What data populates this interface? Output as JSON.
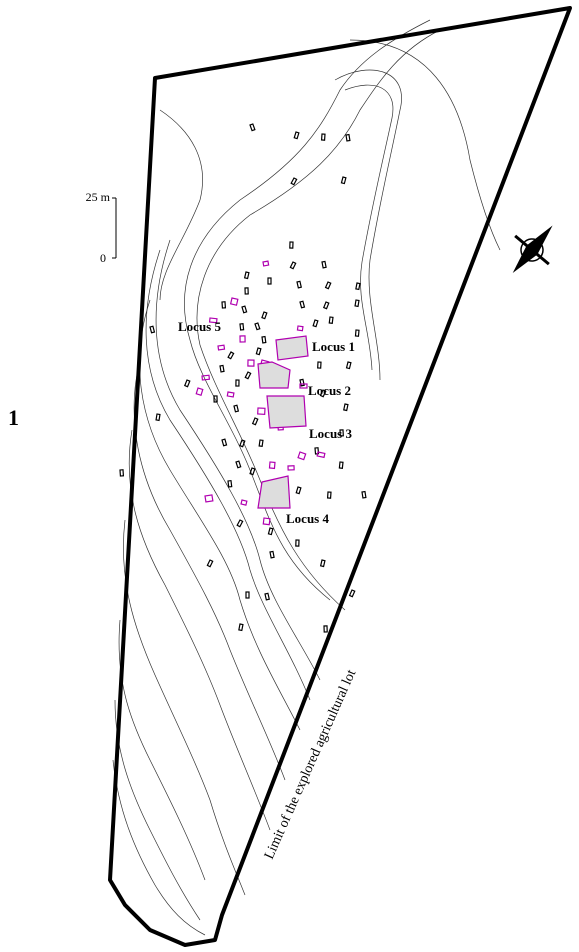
{
  "figure_label": "1",
  "scale": {
    "top": "25 m",
    "bottom": "0"
  },
  "loci": [
    "Locus 5",
    "Locus 1",
    "Locus 2",
    "Locus 3",
    "Locus 4"
  ],
  "boundary_label": "Limit of the explored agricultural lot"
}
